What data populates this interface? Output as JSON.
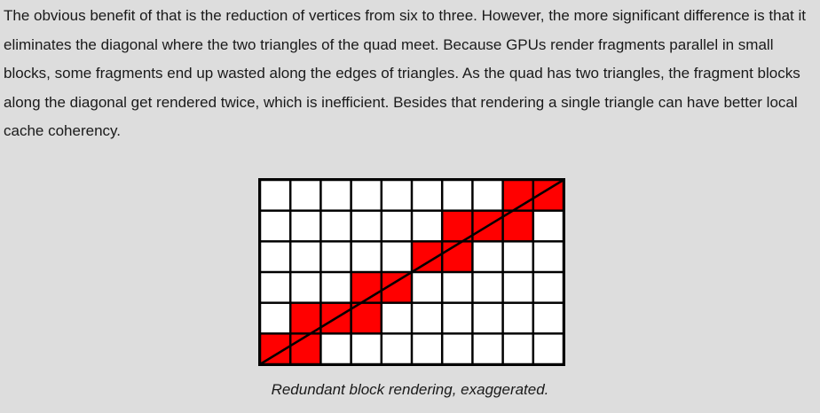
{
  "paragraph": "The obvious benefit of that is the reduction of vertices from six to three. However, the more significant difference is that it eliminates the diagonal where the two triangles of the quad meet. Because GPUs render fragments parallel in small blocks, some fragments end up wasted along the edges of triangles. As the quad has two triangles, the fragment blocks along the diagonal get rendered twice, which is inefficient. Besides that rendering a single triangle can have better local cache coherency.",
  "figure": {
    "columns": 10,
    "rows": 6,
    "highlighted_cells": [
      [
        8,
        0
      ],
      [
        9,
        0
      ],
      [
        6,
        1
      ],
      [
        7,
        1
      ],
      [
        8,
        1
      ],
      [
        5,
        2
      ],
      [
        6,
        2
      ],
      [
        3,
        3
      ],
      [
        4,
        3
      ],
      [
        1,
        4
      ],
      [
        2,
        4
      ],
      [
        3,
        4
      ],
      [
        0,
        5
      ],
      [
        1,
        5
      ]
    ],
    "colors": {
      "cell": "#ffffff",
      "highlight": "#ff0000",
      "grid": "#000000",
      "diagonal": "#000000"
    }
  },
  "caption": "Redundant block rendering, exaggerated."
}
